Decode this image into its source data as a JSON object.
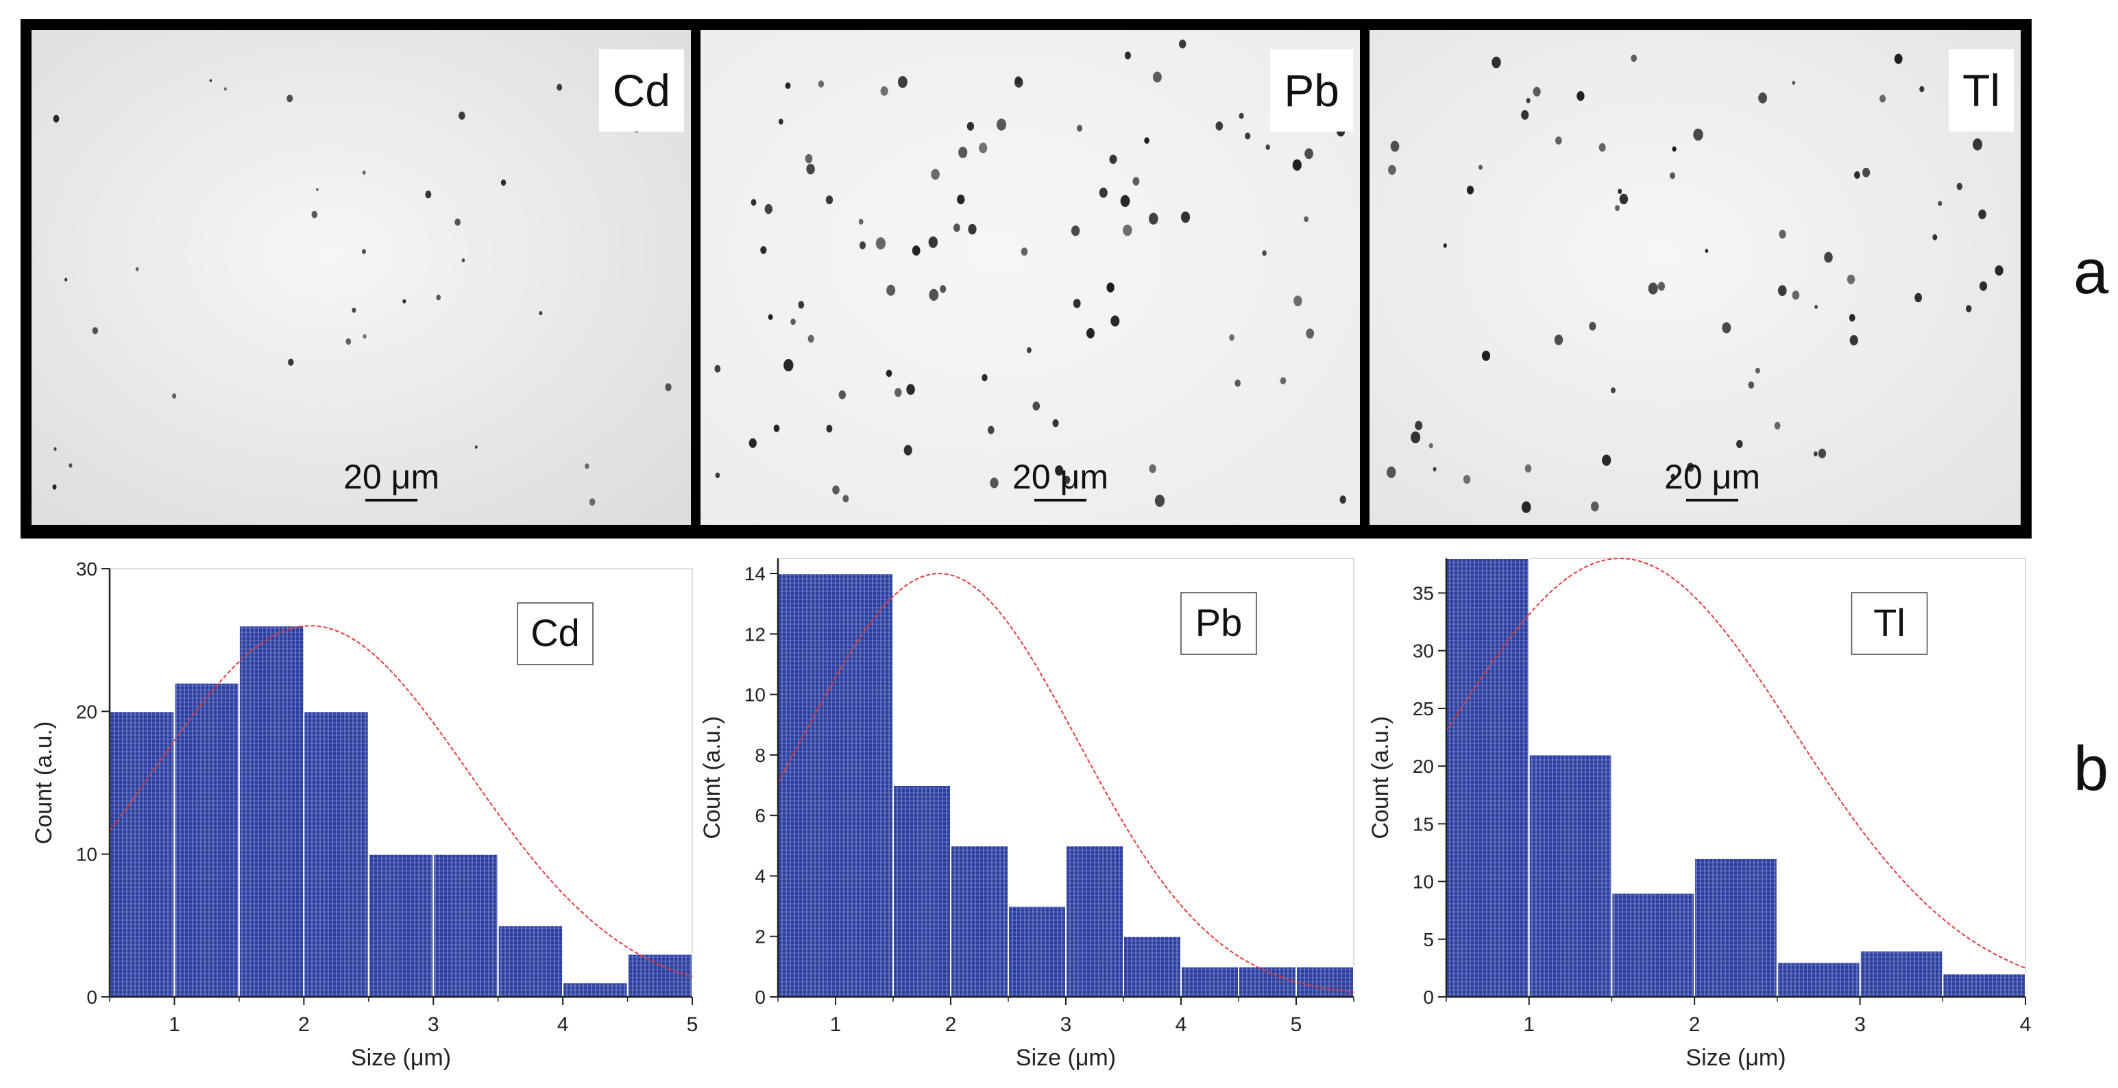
{
  "panel_labels": {
    "top": "a",
    "bottom": "b"
  },
  "micrographs": [
    {
      "label": "Cd",
      "scale_bar": "20 μm"
    },
    {
      "label": "Pb",
      "scale_bar": "20 μm"
    },
    {
      "label": "Tl",
      "scale_bar": "20 μm"
    }
  ],
  "colors": {
    "bar": "#2b3e9e",
    "bar_line": "#8a97d6",
    "fit": "#e23b3b",
    "axis": "#222222"
  },
  "chart_data": [
    {
      "type": "bar",
      "legend": "Cd",
      "xlabel": "Size (μm)",
      "ylabel": "Count (a.u.)",
      "xlim": [
        0.5,
        5
      ],
      "ylim": [
        0,
        30
      ],
      "xticks": [
        "1",
        "2",
        "3",
        "4",
        "5"
      ],
      "yticks": [
        "0",
        "10",
        "20",
        "30"
      ],
      "bins": [
        [
          0.5,
          1.0
        ],
        [
          1.0,
          1.5
        ],
        [
          1.5,
          2.0
        ],
        [
          2.0,
          2.5
        ],
        [
          2.5,
          3.0
        ],
        [
          3.0,
          3.5
        ],
        [
          3.5,
          4.0
        ],
        [
          4.0,
          4.5
        ],
        [
          4.5,
          5.0
        ]
      ],
      "values": [
        20,
        22,
        26,
        20,
        10,
        10,
        5,
        1,
        3
      ],
      "fit": {
        "type": "normal",
        "peak": 26,
        "mean": 2.05,
        "sigma": 1.22
      }
    },
    {
      "type": "bar",
      "legend": "Pb",
      "xlabel": "Size (μm)",
      "ylabel": "Count (a.u.)",
      "xlim": [
        0.5,
        5.5
      ],
      "ylim": [
        0,
        14.5
      ],
      "xticks": [
        "1",
        "2",
        "3",
        "4",
        "5"
      ],
      "yticks": [
        "0",
        "2",
        "4",
        "6",
        "8",
        "10",
        "12",
        "14"
      ],
      "bins": [
        [
          0.5,
          1.5
        ],
        [
          1.5,
          2.0
        ],
        [
          2.0,
          2.5
        ],
        [
          2.5,
          3.0
        ],
        [
          3.0,
          3.5
        ],
        [
          3.5,
          4.0
        ],
        [
          4.0,
          4.5
        ],
        [
          4.5,
          5.0
        ],
        [
          5.0,
          5.5
        ]
      ],
      "values": [
        14,
        7,
        5,
        3,
        5,
        2,
        1,
        1,
        1
      ],
      "fit": {
        "type": "normal",
        "peak": 14,
        "mean": 1.9,
        "sigma": 1.2
      }
    },
    {
      "type": "bar",
      "legend": "Tl",
      "xlabel": "Size (μm)",
      "ylabel": "Count (a.u.)",
      "xlim": [
        0.5,
        4
      ],
      "ylim": [
        0,
        38
      ],
      "xticks": [
        "1",
        "2",
        "3",
        "4"
      ],
      "yticks": [
        "0",
        "5",
        "10",
        "15",
        "20",
        "25",
        "30",
        "35"
      ],
      "bins": [
        [
          0.5,
          1.0
        ],
        [
          1.0,
          1.5
        ],
        [
          1.5,
          2.0
        ],
        [
          2.0,
          2.5
        ],
        [
          2.5,
          3.0
        ],
        [
          3.0,
          3.5
        ],
        [
          3.5,
          4.0
        ]
      ],
      "values": [
        38,
        21,
        9,
        12,
        3,
        4,
        2
      ],
      "fit": {
        "type": "normal",
        "peak": 38,
        "mean": 1.55,
        "sigma": 1.05
      }
    }
  ]
}
